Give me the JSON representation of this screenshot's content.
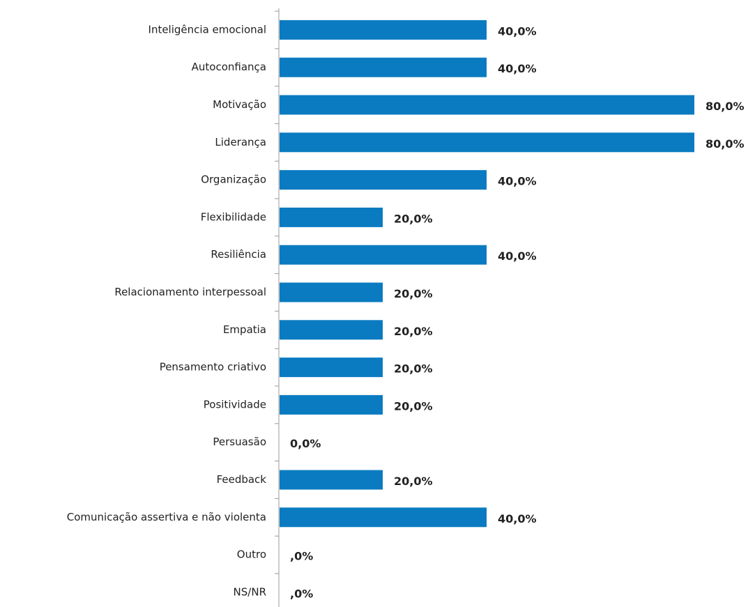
{
  "chart_data": {
    "type": "bar",
    "orientation": "horizontal",
    "color": "#0a7bc1",
    "categories": [
      "Inteligência emocional",
      "Autoconfiança",
      "Motivação",
      "Liderança",
      "Organização",
      "Flexibilidade",
      "Resiliência",
      "Relacionamento interpessoal",
      "Empatia",
      "Pensamento criativo",
      "Positividade",
      "Persuasão",
      "Feedback",
      "Comunicação assertiva e não violenta",
      "Outro",
      "NS/NR"
    ],
    "values": [
      40,
      40,
      80,
      80,
      40,
      20,
      40,
      20,
      20,
      20,
      20,
      0,
      20,
      40,
      0,
      0
    ],
    "value_labels": [
      "40,0%",
      "40,0%",
      "80,0%",
      "80,0%",
      "40,0%",
      "20,0%",
      "40,0%",
      "20,0%",
      "20,0%",
      "20,0%",
      "20,0%",
      "0,0%",
      "20,0%",
      "40,0%",
      ",0%",
      ",0%"
    ]
  }
}
